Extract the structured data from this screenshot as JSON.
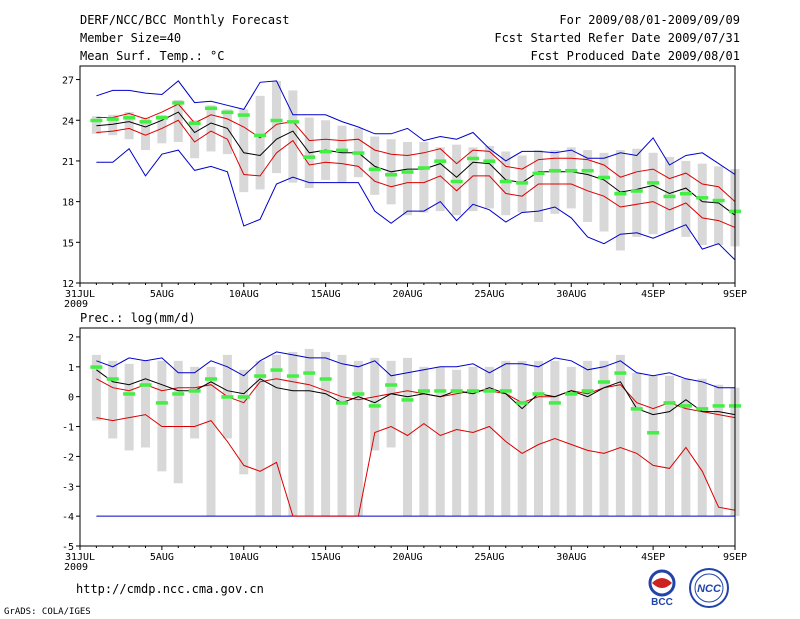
{
  "header": {
    "title": "DERF/NCC/BCC Monthly Forecast",
    "member_size": "Member Size=40",
    "variable": "Mean Surf. Temp.: °C",
    "forecast_period": "For 2009/08/01-2009/09/09",
    "started_refer": "Fcst Started Refer Date 2009/07/31",
    "produced": "Fcst Produced Date 2009/08/01"
  },
  "footer": {
    "url": "http://cmdp.ncc.cma.gov.cn",
    "grads": "GrADS: COLA/IGES",
    "logo_left_text": "BCC",
    "logo_right_text": "NCC"
  },
  "colors": {
    "box": "#d8d8d8",
    "median": "#44ee44",
    "mean": "#000000",
    "spread": "#dd0000",
    "extreme": "#0000cc"
  },
  "chart_data": [
    {
      "type": "box-line",
      "title": "Mean Surf. Temp.: °C",
      "x_tick_labels": [
        "31JUL\n2009",
        "5AUG",
        "10AUG",
        "15AUG",
        "20AUG",
        "25AUG",
        "30AUG",
        "4SEP",
        "9SEP"
      ],
      "x_tick_days": [
        0,
        5,
        10,
        15,
        20,
        25,
        30,
        35,
        40
      ],
      "xlim": [
        0,
        40
      ],
      "ylim": [
        12,
        28
      ],
      "y_ticks": [
        12,
        15,
        18,
        21,
        24,
        27
      ],
      "days": [
        1,
        2,
        3,
        4,
        5,
        6,
        7,
        8,
        9,
        10,
        11,
        12,
        13,
        14,
        15,
        16,
        17,
        18,
        19,
        20,
        21,
        22,
        23,
        24,
        25,
        26,
        27,
        28,
        29,
        30,
        31,
        32,
        33,
        34,
        35,
        36,
        37,
        38,
        39,
        40
      ],
      "series": [
        {
          "name": "box_upper",
          "values": [
            24.3,
            24.4,
            24.6,
            24.2,
            24.4,
            25.5,
            24.0,
            25.1,
            24.8,
            24.8,
            25.8,
            26.9,
            26.2,
            24.2,
            24.0,
            23.6,
            23.4,
            22.8,
            22.6,
            22.4,
            22.4,
            22.0,
            22.2,
            22.0,
            22.1,
            21.7,
            21.4,
            21.8,
            21.8,
            22.0,
            21.8,
            21.6,
            21.8,
            21.9,
            21.6,
            21.3,
            21.0,
            20.8,
            20.6,
            20.4
          ]
        },
        {
          "name": "box_lower",
          "values": [
            23.0,
            22.9,
            22.6,
            21.8,
            22.3,
            22.4,
            21.2,
            21.7,
            21.5,
            18.7,
            18.9,
            20.1,
            19.4,
            19.0,
            19.6,
            19.4,
            19.8,
            18.5,
            17.8,
            17.0,
            17.2,
            17.3,
            17.0,
            17.3,
            17.5,
            17.0,
            17.2,
            16.5,
            17.1,
            17.5,
            16.5,
            15.8,
            14.4,
            15.4,
            15.6,
            15.8,
            15.4,
            14.8,
            14.8,
            14.7
          ]
        },
        {
          "name": "median",
          "values": [
            24.0,
            24.1,
            24.2,
            23.9,
            24.2,
            25.3,
            23.8,
            24.9,
            24.6,
            24.4,
            22.9,
            24.0,
            23.9,
            21.3,
            21.7,
            21.8,
            21.6,
            20.4,
            20.0,
            20.2,
            20.5,
            21.0,
            19.5,
            21.2,
            21.0,
            19.5,
            19.4,
            20.1,
            20.3,
            20.3,
            20.3,
            19.8,
            18.6,
            18.8,
            19.4,
            18.4,
            18.6,
            18.3,
            18.1,
            17.3
          ]
        },
        {
          "name": "maximum",
          "values": [
            25.8,
            26.2,
            26.2,
            26.0,
            25.9,
            26.9,
            25.3,
            25.4,
            25.1,
            24.8,
            26.8,
            26.9,
            24.4,
            24.4,
            24.4,
            23.9,
            23.5,
            23.0,
            23.0,
            23.4,
            22.5,
            22.8,
            22.6,
            23.1,
            21.9,
            21.0,
            21.7,
            21.7,
            21.6,
            21.8,
            21.2,
            21.2,
            21.6,
            21.4,
            22.7,
            20.7,
            21.4,
            21.6,
            20.8,
            20.0
          ]
        },
        {
          "name": "minimum",
          "values": [
            20.9,
            20.9,
            21.9,
            19.9,
            21.5,
            21.8,
            20.3,
            20.6,
            20.2,
            16.2,
            16.7,
            19.3,
            19.8,
            19.4,
            19.4,
            19.4,
            19.4,
            17.3,
            16.4,
            17.3,
            17.3,
            18.0,
            16.6,
            17.8,
            17.4,
            16.5,
            17.2,
            17.3,
            17.6,
            16.8,
            15.4,
            14.9,
            15.6,
            15.7,
            15.3,
            15.8,
            16.3,
            14.5,
            14.9,
            13.7
          ]
        },
        {
          "name": "mean_plus_std",
          "values": [
            24.2,
            24.2,
            24.5,
            24.1,
            24.6,
            25.2,
            23.8,
            24.4,
            24.1,
            23.5,
            22.7,
            23.7,
            23.9,
            22.5,
            22.6,
            22.5,
            22.6,
            21.8,
            21.5,
            21.4,
            21.6,
            21.9,
            20.8,
            21.8,
            21.7,
            20.6,
            20.4,
            21.1,
            21.2,
            21.2,
            21.1,
            20.7,
            19.8,
            20.2,
            20.4,
            19.7,
            20.1,
            19.3,
            19.1,
            18.0
          ]
        },
        {
          "name": "mean",
          "values": [
            23.6,
            23.7,
            23.9,
            23.5,
            24.0,
            24.6,
            23.1,
            23.8,
            23.4,
            21.6,
            21.4,
            22.6,
            23.2,
            21.6,
            21.8,
            21.6,
            21.6,
            20.6,
            20.2,
            20.4,
            20.4,
            20.8,
            19.8,
            20.9,
            20.8,
            19.6,
            19.4,
            20.2,
            20.2,
            20.2,
            20.0,
            19.6,
            18.7,
            18.9,
            19.2,
            18.6,
            19.0,
            18.0,
            17.9,
            17.0
          ]
        },
        {
          "name": "mean_minus_std",
          "values": [
            23.1,
            23.2,
            23.4,
            22.9,
            23.4,
            24.0,
            22.4,
            23.2,
            22.6,
            20.0,
            19.9,
            21.6,
            22.5,
            20.7,
            20.9,
            20.8,
            20.6,
            19.5,
            19.1,
            19.4,
            19.4,
            19.9,
            18.8,
            19.9,
            19.9,
            18.6,
            18.4,
            19.3,
            19.3,
            19.3,
            18.8,
            18.4,
            17.6,
            17.8,
            18.0,
            17.4,
            17.9,
            16.8,
            16.6,
            16.1
          ]
        }
      ]
    },
    {
      "type": "box-line",
      "title": "Prec.: log(mm/d)",
      "x_tick_labels": [
        "31JUL\n2009",
        "5AUG",
        "10AUG",
        "15AUG",
        "20AUG",
        "25AUG",
        "30AUG",
        "4SEP",
        "9SEP"
      ],
      "x_tick_days": [
        0,
        5,
        10,
        15,
        20,
        25,
        30,
        35,
        40
      ],
      "xlim": [
        0,
        40
      ],
      "ylim": [
        -5,
        2.3
      ],
      "y_ticks": [
        -5,
        -4,
        -3,
        -2,
        -1,
        0,
        1,
        2
      ],
      "days": [
        1,
        2,
        3,
        4,
        5,
        6,
        7,
        8,
        9,
        10,
        11,
        12,
        13,
        14,
        15,
        16,
        17,
        18,
        19,
        20,
        21,
        22,
        23,
        24,
        25,
        26,
        27,
        28,
        29,
        30,
        31,
        32,
        33,
        34,
        35,
        36,
        37,
        38,
        39,
        40
      ],
      "series": [
        {
          "name": "box_upper",
          "values": [
            1.4,
            1.2,
            1.1,
            1.2,
            1.2,
            1.2,
            1.0,
            1.0,
            1.4,
            0.9,
            1.2,
            1.4,
            1.5,
            1.6,
            1.5,
            1.4,
            1.2,
            1.3,
            1.2,
            1.3,
            1.0,
            1.0,
            0.9,
            1.0,
            1.0,
            1.2,
            1.2,
            1.2,
            1.2,
            1.0,
            1.2,
            1.2,
            1.4,
            0.8,
            0.7,
            0.7,
            0.6,
            0.6,
            0.4,
            0.3
          ]
        },
        {
          "name": "box_lower",
          "values": [
            -0.8,
            -1.4,
            -1.8,
            -1.7,
            -2.5,
            -2.9,
            -1.4,
            -4.0,
            -1.4,
            -2.6,
            -4.0,
            -4.0,
            -4.0,
            -4.0,
            -4.0,
            -4.0,
            -4.0,
            -1.8,
            -1.7,
            -4.0,
            -4.0,
            -4.0,
            -4.0,
            -4.0,
            -4.0,
            -4.0,
            -4.0,
            -4.0,
            -4.0,
            -4.0,
            -4.0,
            -4.0,
            -4.0,
            -4.0,
            -4.0,
            -4.0,
            -4.0,
            -4.0,
            -4.0,
            -4.0
          ]
        },
        {
          "name": "median",
          "values": [
            1.0,
            0.6,
            0.1,
            0.4,
            -0.2,
            0.1,
            0.2,
            0.6,
            0.0,
            0.0,
            0.7,
            0.9,
            0.7,
            0.8,
            0.6,
            -0.2,
            0.1,
            -0.3,
            0.4,
            -0.1,
            0.2,
            0.2,
            0.2,
            0.2,
            0.2,
            0.2,
            -0.2,
            0.1,
            -0.2,
            0.1,
            0.2,
            0.5,
            0.8,
            -0.4,
            -1.2,
            -0.2,
            -0.3,
            -0.4,
            -0.3,
            -0.3
          ]
        },
        {
          "name": "maximum",
          "values": [
            1.2,
            1.0,
            1.3,
            1.2,
            1.3,
            0.8,
            0.8,
            1.2,
            1.0,
            0.7,
            1.2,
            1.5,
            1.4,
            1.3,
            1.3,
            1.1,
            1.0,
            1.2,
            0.7,
            0.8,
            0.9,
            1.0,
            1.0,
            1.1,
            0.8,
            1.1,
            1.1,
            1.0,
            1.3,
            1.2,
            0.9,
            1.0,
            1.2,
            0.8,
            0.7,
            0.8,
            0.6,
            0.5,
            0.3,
            0.3
          ]
        },
        {
          "name": "minimum",
          "values": [
            -4,
            -4,
            -4,
            -4,
            -4,
            -4,
            -4,
            -4,
            -4,
            -4,
            -4,
            -4,
            -4,
            -4,
            -4,
            -4,
            -4,
            -4,
            -4,
            -4,
            -4,
            -4,
            -4,
            -4,
            -4,
            -4,
            -4,
            -4,
            -4,
            -4,
            -4,
            -4,
            -4,
            -4,
            -4,
            -4,
            -4,
            -4,
            -4,
            -4
          ]
        },
        {
          "name": "mean_plus_std",
          "values": [
            0.6,
            0.3,
            0.2,
            0.4,
            0.2,
            0.3,
            0.3,
            0.4,
            0.0,
            -0.2,
            0.5,
            0.6,
            0.5,
            0.4,
            0.2,
            0.0,
            -0.1,
            0.0,
            0.1,
            0.2,
            0.1,
            0.0,
            0.1,
            0.2,
            0.2,
            0.1,
            -0.2,
            0.0,
            0.0,
            0.2,
            0.1,
            0.3,
            0.4,
            -0.2,
            -0.4,
            -0.2,
            -0.4,
            -0.5,
            -0.6,
            -0.7
          ]
        },
        {
          "name": "mean",
          "values": [
            0.9,
            0.5,
            0.4,
            0.6,
            0.4,
            0.2,
            0.2,
            0.5,
            0.2,
            0.1,
            0.6,
            0.3,
            0.2,
            0.2,
            0.1,
            -0.2,
            0.0,
            -0.2,
            0.1,
            0.0,
            0.1,
            0.0,
            0.2,
            0.1,
            0.3,
            0.1,
            -0.4,
            0.1,
            0.0,
            0.2,
            0.0,
            0.3,
            0.5,
            -0.4,
            -0.6,
            -0.5,
            -0.1,
            -0.5,
            -0.5,
            -0.6
          ]
        },
        {
          "name": "mean_minus_std",
          "values": [
            -0.7,
            -0.8,
            -0.7,
            -0.6,
            -1.0,
            -1.0,
            -1.0,
            -0.8,
            -1.5,
            -2.3,
            -2.5,
            -2.2,
            -4.0,
            -4.0,
            -4.0,
            -4.0,
            -4.0,
            -1.2,
            -1.0,
            -1.3,
            -0.9,
            -1.3,
            -1.1,
            -1.2,
            -1.0,
            -1.5,
            -1.9,
            -1.6,
            -1.4,
            -1.6,
            -1.8,
            -1.9,
            -1.7,
            -1.9,
            -2.3,
            -2.4,
            -1.7,
            -2.5,
            -3.7,
            -3.8
          ]
        }
      ]
    }
  ]
}
